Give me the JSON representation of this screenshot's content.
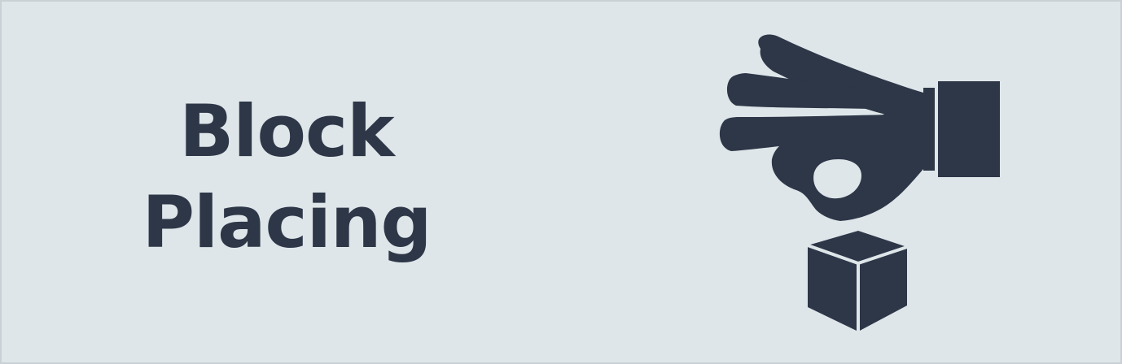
{
  "banner": {
    "title_line1": "Block",
    "title_line2": "Placing",
    "icon": "hand-placing-block-icon",
    "colors": {
      "background": "#dfe6e9",
      "foreground": "#2d3748"
    }
  }
}
